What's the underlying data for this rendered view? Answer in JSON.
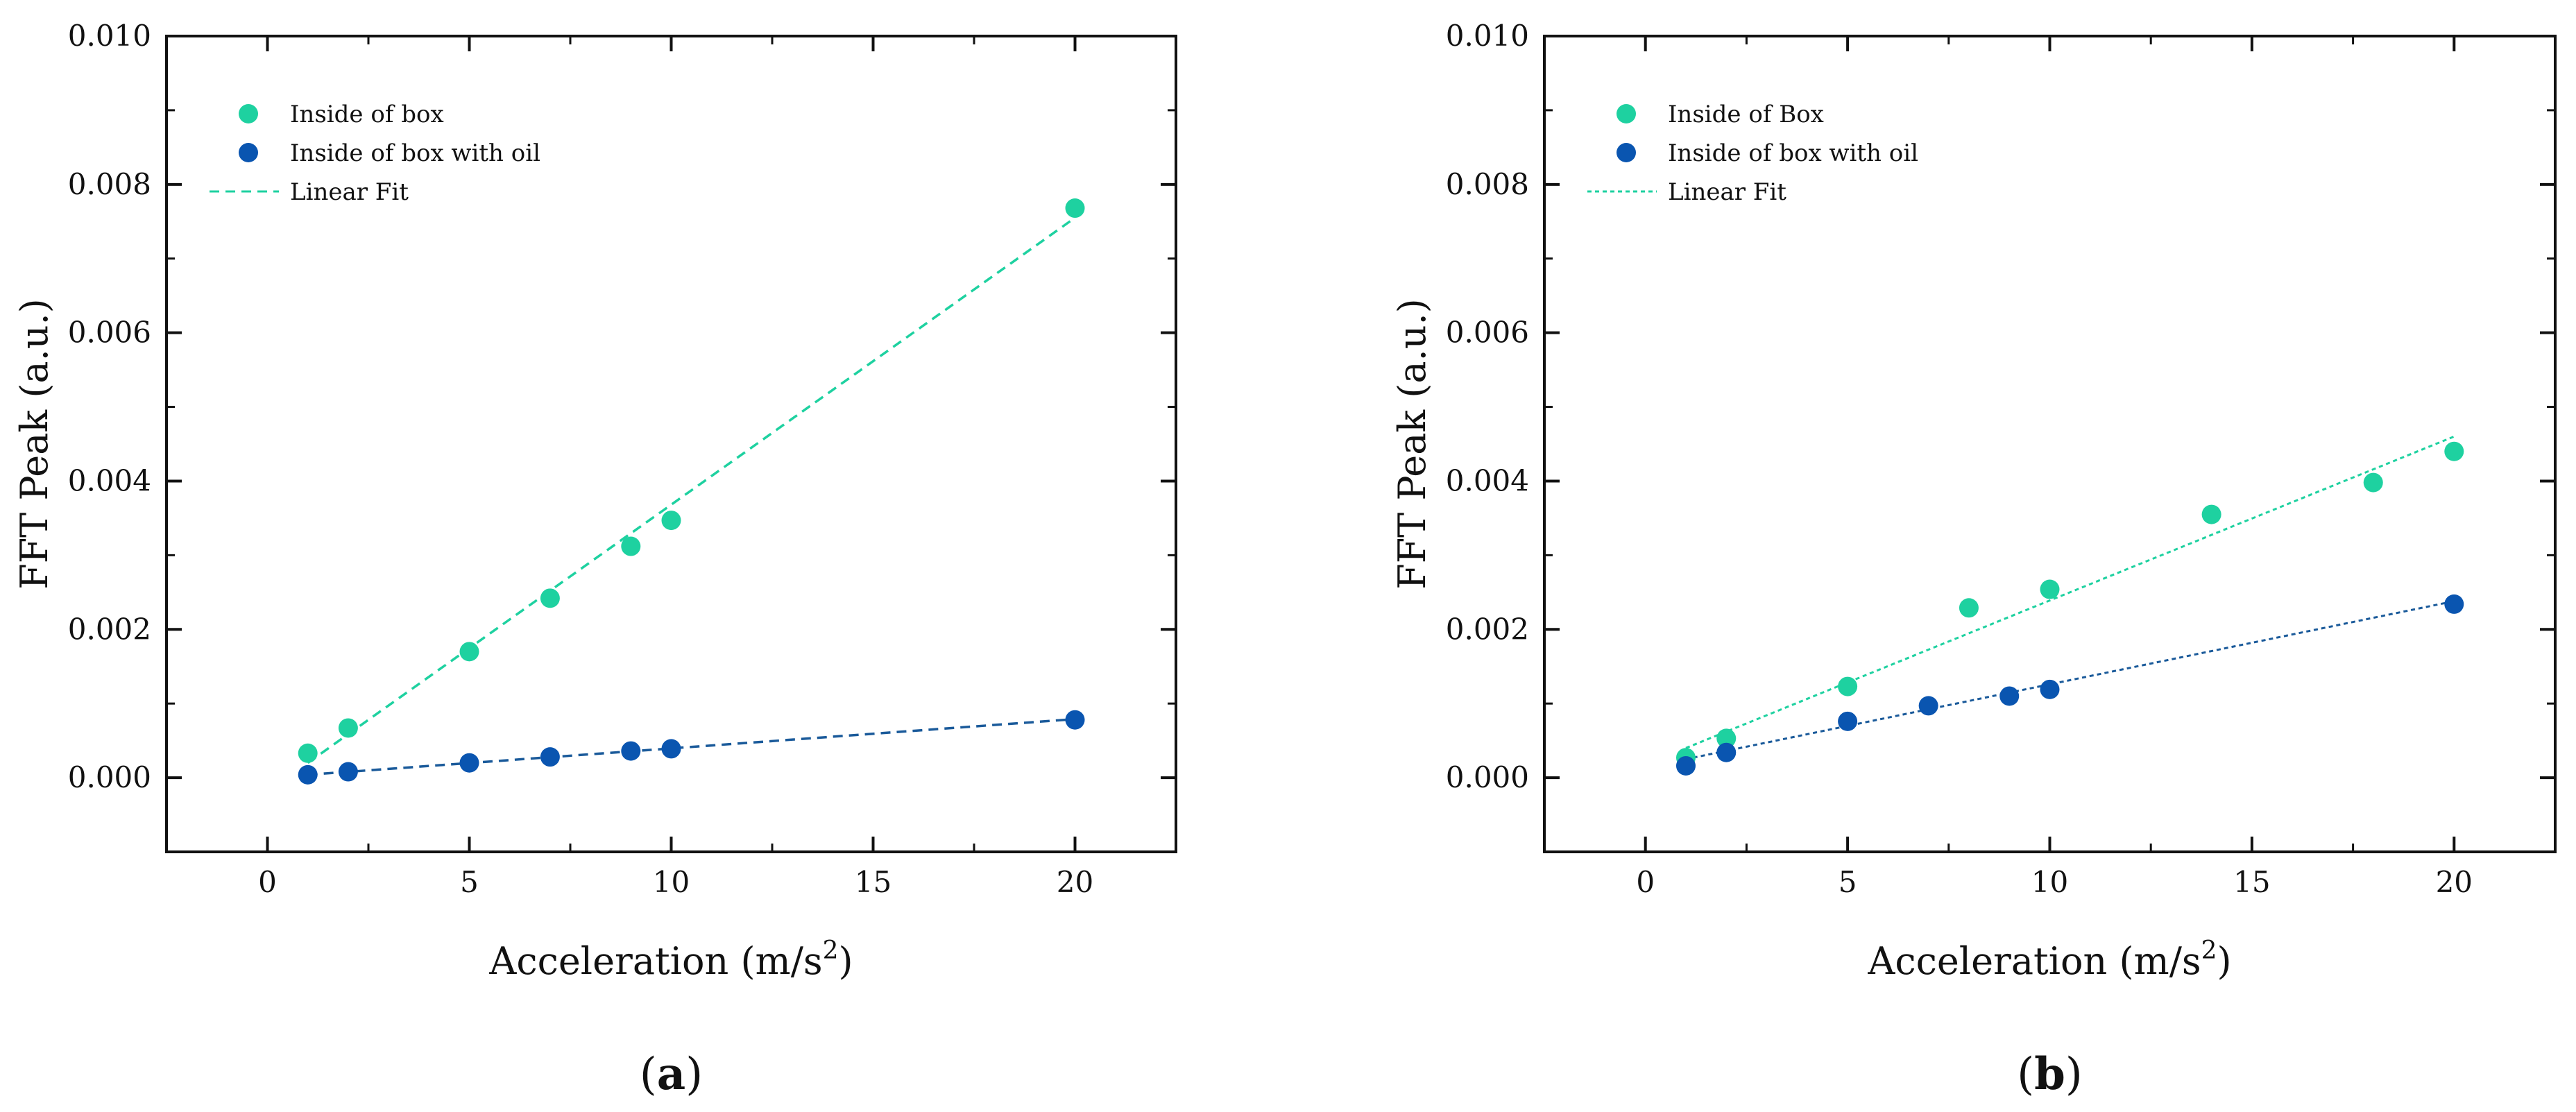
{
  "chart_data": [
    {
      "type": "scatter",
      "panel_label": "a",
      "xlabel": "Acceleration (m/s",
      "xlabel_sup": "2",
      "xlabel_end": ")",
      "ylabel": "FFT Peak (a.u.)",
      "xlim": [
        -2.5,
        22.5
      ],
      "ylim": [
        -0.001,
        0.01
      ],
      "xticks": [
        "0",
        "5",
        "10",
        "15",
        "20"
      ],
      "xtick_values": [
        0,
        5,
        10,
        15,
        20
      ],
      "yticks": [
        "0.000",
        "0.002",
        "0.004",
        "0.006",
        "0.008",
        "0.010"
      ],
      "ytick_values": [
        0,
        0.002,
        0.004,
        0.006,
        0.008,
        0.01
      ],
      "legend_position": "top-left",
      "series": [
        {
          "name": "Inside of box",
          "color": "#1ed1a0",
          "x": [
            1,
            2,
            5,
            7,
            9,
            10,
            20
          ],
          "y": [
            0.00033,
            0.00067,
            0.0017,
            0.00242,
            0.00312,
            0.00347,
            0.00768
          ]
        },
        {
          "name": "Inside of box with oil",
          "color": "#0a55b0",
          "x": [
            1,
            2,
            5,
            7,
            9,
            10,
            20
          ],
          "y": [
            4e-05,
            8e-05,
            0.0002,
            0.00028,
            0.00036,
            0.00039,
            0.00078
          ]
        }
      ],
      "fits": [
        {
          "name": "Linear Fit",
          "color": "#1ed1a0",
          "x": [
            1,
            20
          ],
          "y": [
            0.0002,
            0.00755
          ]
        },
        {
          "name": "",
          "color": "#1a5a9a",
          "x": [
            1,
            20
          ],
          "y": [
            4e-05,
            0.00079
          ]
        }
      ]
    },
    {
      "type": "scatter",
      "panel_label": "b",
      "xlabel": "Acceleration (m/s",
      "xlabel_sup": "2",
      "xlabel_end": ")",
      "ylabel": "FFT Peak (a.u.)",
      "xlim": [
        -2.5,
        22.5
      ],
      "ylim": [
        -0.001,
        0.01
      ],
      "xticks": [
        "0",
        "5",
        "10",
        "15",
        "20"
      ],
      "xtick_values": [
        0,
        5,
        10,
        15,
        20
      ],
      "yticks": [
        "0.000",
        "0.002",
        "0.004",
        "0.006",
        "0.008",
        "0.010"
      ],
      "ytick_values": [
        0,
        0.002,
        0.004,
        0.006,
        0.008,
        0.01
      ],
      "legend_position": "top-left",
      "series": [
        {
          "name": "Inside of Box",
          "color": "#1ed1a0",
          "x": [
            1,
            2,
            5,
            8,
            10,
            14,
            18,
            20
          ],
          "y": [
            0.00027,
            0.00053,
            0.00123,
            0.00229,
            0.00254,
            0.00355,
            0.00398,
            0.0044
          ]
        },
        {
          "name": "Inside of box with oil",
          "color": "#0a55b0",
          "x": [
            1,
            2,
            5,
            7,
            9,
            10,
            20
          ],
          "y": [
            0.00016,
            0.00034,
            0.00076,
            0.00097,
            0.0011,
            0.00119,
            0.00234
          ]
        }
      ],
      "fits": [
        {
          "name": "Linear Fit",
          "color": "#1ed1a0",
          "x": [
            1,
            20
          ],
          "y": [
            0.0004,
            0.0046
          ]
        },
        {
          "name": "",
          "color": "#1a5a9a",
          "x": [
            1,
            20
          ],
          "y": [
            0.00025,
            0.00238
          ]
        }
      ]
    }
  ]
}
